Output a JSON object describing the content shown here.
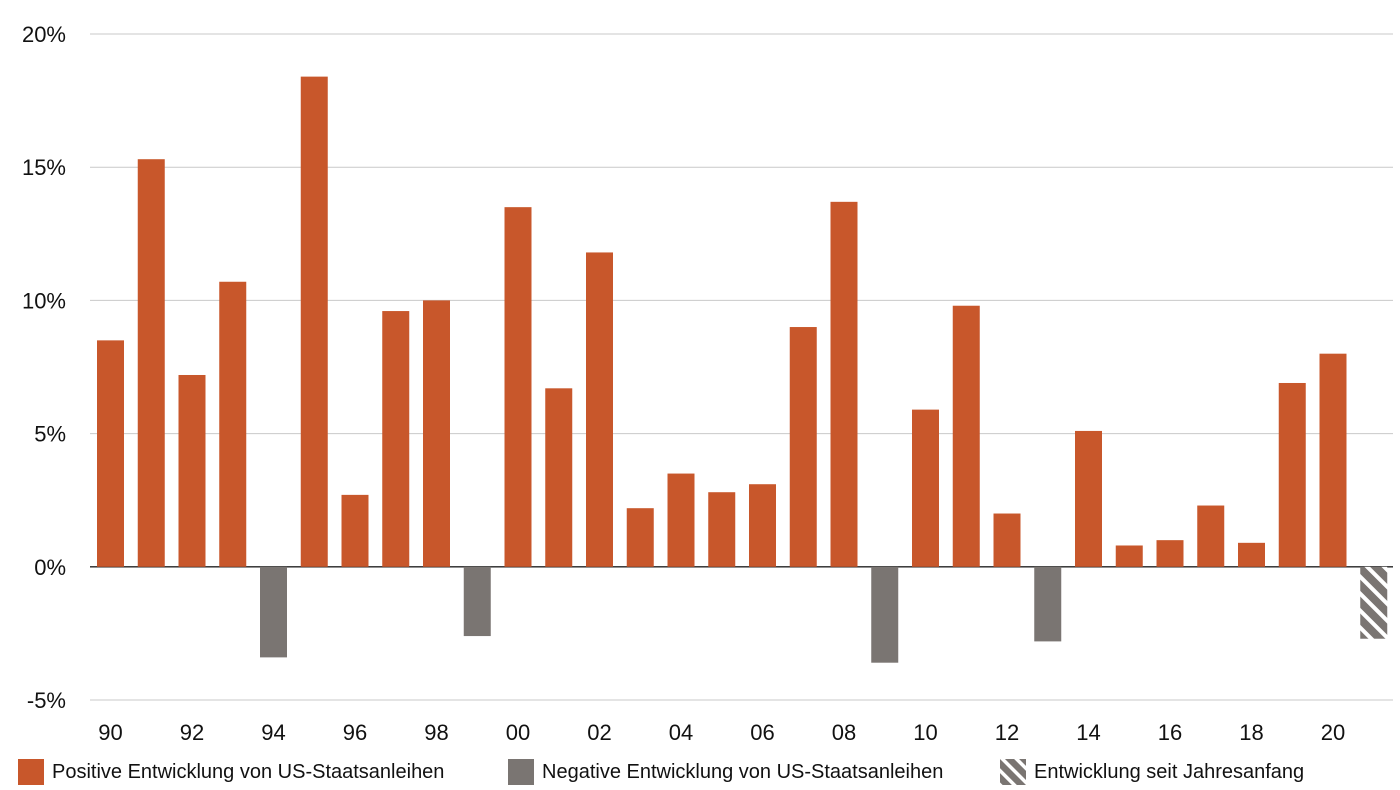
{
  "chart_data": {
    "type": "bar",
    "colors": {
      "positive": "#c8572b",
      "negative": "#7a7572",
      "ytd": "#7a7572",
      "grid": "#c9c9c9"
    },
    "categories": [
      "90",
      "91",
      "92",
      "93",
      "94",
      "95",
      "96",
      "97",
      "98",
      "99",
      "00",
      "01",
      "02",
      "03",
      "04",
      "05",
      "06",
      "07",
      "08",
      "09",
      "10",
      "11",
      "12",
      "13",
      "14",
      "15",
      "16",
      "17",
      "18",
      "19",
      "20",
      "21"
    ],
    "values": [
      8.5,
      15.3,
      7.2,
      10.7,
      -3.4,
      18.4,
      2.7,
      9.6,
      10.0,
      -2.6,
      13.5,
      6.7,
      11.8,
      2.2,
      3.5,
      2.8,
      3.1,
      9.0,
      13.7,
      -3.6,
      5.9,
      9.8,
      2.0,
      -2.8,
      5.1,
      0.8,
      1.0,
      2.3,
      0.9,
      6.9,
      8.0,
      -2.7
    ],
    "ytd_index": 31,
    "x_tick_labels": [
      "90",
      "92",
      "94",
      "96",
      "98",
      "00",
      "02",
      "04",
      "06",
      "08",
      "10",
      "12",
      "14",
      "16",
      "18",
      "20"
    ],
    "y_ticks": [
      20,
      15,
      10,
      5,
      0,
      -5
    ],
    "y_tick_labels": [
      "20%",
      "15%",
      "10%",
      "5%",
      "0%",
      "-5%"
    ],
    "ylim": [
      -5,
      20
    ],
    "grid": true,
    "legend_position": "bottom",
    "legend": [
      {
        "key": "positive",
        "label": "Positive Entwicklung von US-Staatsanleihen"
      },
      {
        "key": "negative",
        "label": "Negative Entwicklung von US-Staatsanleihen"
      },
      {
        "key": "ytd",
        "label": "Entwicklung seit Jahresanfang"
      }
    ]
  }
}
